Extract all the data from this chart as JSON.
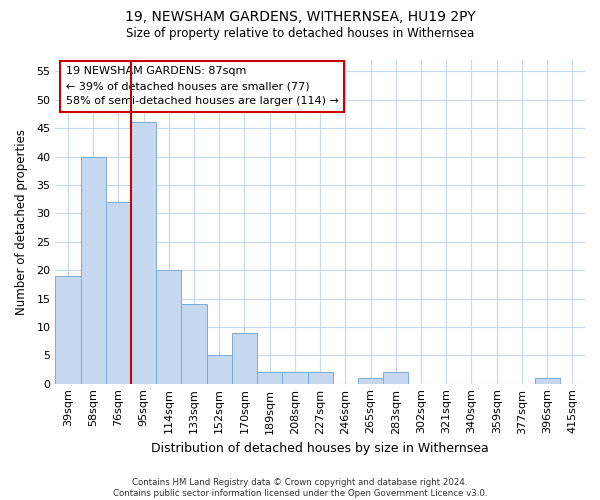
{
  "title1": "19, NEWSHAM GARDENS, WITHERNSEA, HU19 2PY",
  "title2": "Size of property relative to detached houses in Withernsea",
  "xlabel": "Distribution of detached houses by size in Withernsea",
  "ylabel": "Number of detached properties",
  "categories": [
    "39sqm",
    "58sqm",
    "76sqm",
    "95sqm",
    "114sqm",
    "133sqm",
    "152sqm",
    "170sqm",
    "189sqm",
    "208sqm",
    "227sqm",
    "246sqm",
    "265sqm",
    "283sqm",
    "302sqm",
    "321sqm",
    "340sqm",
    "359sqm",
    "377sqm",
    "396sqm",
    "415sqm"
  ],
  "values": [
    19,
    40,
    32,
    46,
    20,
    14,
    5,
    9,
    2,
    2,
    2,
    0,
    1,
    2,
    0,
    0,
    0,
    0,
    0,
    1,
    0
  ],
  "bar_color": "#c5d8f0",
  "bar_edgecolor": "#7aadd4",
  "vline_color": "#cc0000",
  "annotation_line1": "19 NEWSHAM GARDENS: 87sqm",
  "annotation_line2": "← 39% of detached houses are smaller (77)",
  "annotation_line3": "58% of semi-detached houses are larger (114) →",
  "annotation_box_facecolor": "#ffffff",
  "annotation_box_edgecolor": "#cc0000",
  "ylim": [
    0,
    57
  ],
  "yticks": [
    0,
    5,
    10,
    15,
    20,
    25,
    30,
    35,
    40,
    45,
    50,
    55
  ],
  "footnote": "Contains HM Land Registry data © Crown copyright and database right 2024.\nContains public sector information licensed under the Open Government Licence v3.0.",
  "fig_facecolor": "#ffffff",
  "axes_facecolor": "#ffffff",
  "grid_color": "#c8d8ec",
  "vline_xindex": 2.5
}
